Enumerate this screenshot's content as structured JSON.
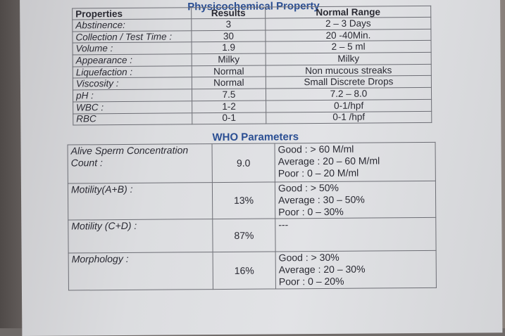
{
  "physicochemical": {
    "title": "Physicochemical Property",
    "headers": {
      "property": "Properties",
      "results": "Results",
      "normal": "Normal Range"
    },
    "rows": [
      {
        "property": "Abstinence:",
        "result": "3",
        "normal": "2 – 3 Days"
      },
      {
        "property": "Collection / Test Time :",
        "result": "30",
        "normal": "20 -40Min."
      },
      {
        "property": "Volume :",
        "result": "1.9",
        "normal": "2 – 5 ml"
      },
      {
        "property": "Appearance :",
        "result": "Milky",
        "normal": "Milky"
      },
      {
        "property": "Liquefaction :",
        "result": "Normal",
        "normal": "Non mucous streaks"
      },
      {
        "property": "Viscosity :",
        "result": "Normal",
        "normal": "Small Discrete Drops"
      },
      {
        "property": "pH :",
        "result": "7.5",
        "normal": "7.2 – 8.0"
      },
      {
        "property": "WBC :",
        "result": "1-2",
        "normal": "0-1/hpf"
      },
      {
        "property": "RBC",
        "result": "0-1",
        "normal": "0-1 /hpf"
      }
    ]
  },
  "who": {
    "title": "WHO Parameters",
    "rows": [
      {
        "param_lines": [
          "Alive Sperm Concentration",
          "Count :"
        ],
        "value": "9.0",
        "normal_lines": [
          "Good : > 60 M/ml",
          "Average : 20 – 60 M/ml",
          "Poor : 0 – 20 M/ml"
        ]
      },
      {
        "param_lines": [
          "Motility(A+B) :"
        ],
        "value": "13%",
        "normal_lines": [
          "Good : > 50%",
          "Average : 30 – 50%",
          "Poor : 0 – 30%"
        ]
      },
      {
        "param_lines": [
          "Motility (C+D) :"
        ],
        "value": "87%",
        "normal_lines": [
          "---"
        ]
      },
      {
        "param_lines": [
          "Morphology :"
        ],
        "value": "16%",
        "normal_lines": [
          "Good : > 30%",
          "Average : 20 – 30%",
          "Poor : 0 – 20%"
        ]
      }
    ]
  },
  "colors": {
    "heading": "#2b4f93",
    "text": "#2a2a33",
    "border": "#6d6e75"
  }
}
